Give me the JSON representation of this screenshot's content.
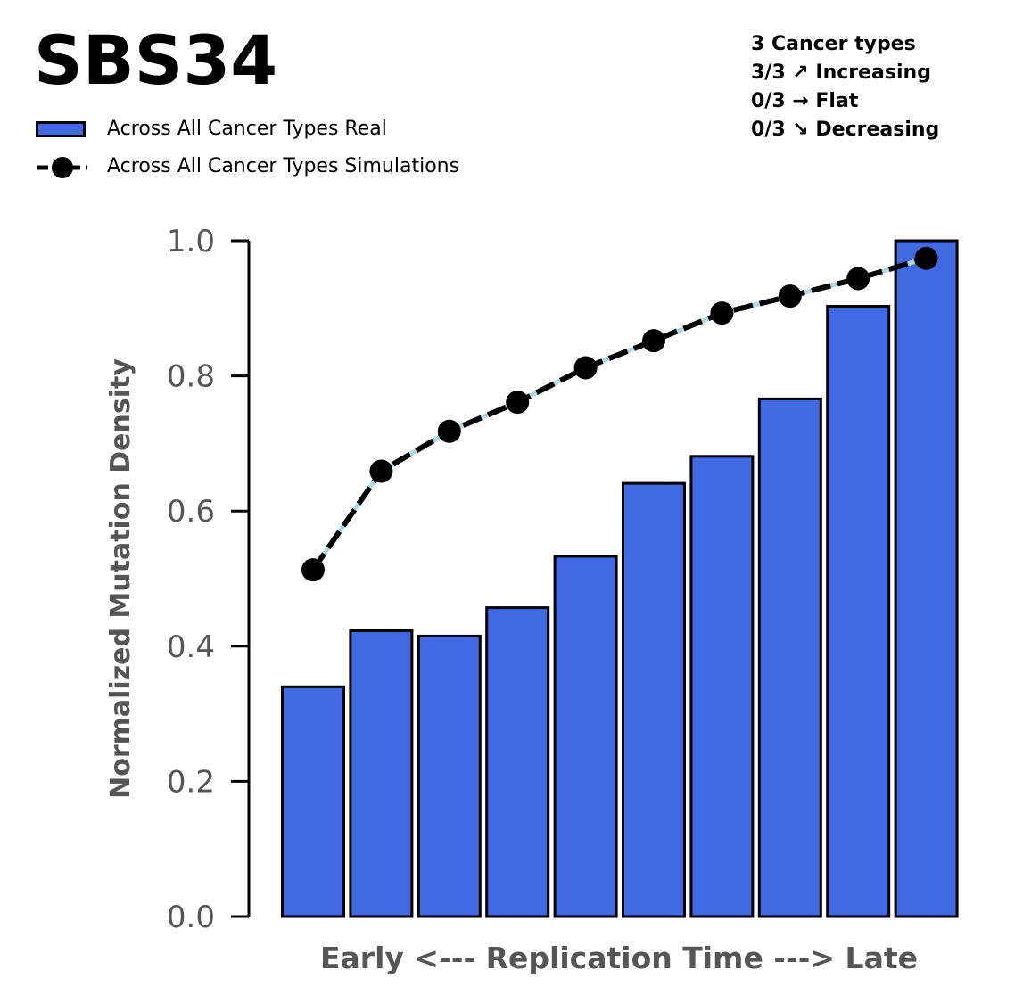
{
  "title": "SBS34",
  "summary": {
    "lines": [
      "3 Cancer types",
      "3/3 ↗ Increasing",
      "0/3 → Flat",
      "0/3 ↘ Decreasing"
    ]
  },
  "legend": {
    "real_label": "Across All Cancer Types Real",
    "sim_label": "Across All Cancer Types Simulations"
  },
  "colors": {
    "bar": "#4169E1",
    "bar_edge": "#000000",
    "sim_line": "#000000",
    "sim_dash_gap": "#ADD8E6",
    "axis_text": "#555555"
  },
  "chart_data": {
    "type": "bar",
    "xlabel": "Early <--- Replication Time ---> Late",
    "ylabel": "Normalized Mutation Density",
    "ylim": [
      0,
      1.0
    ],
    "yticks": [
      0.0,
      0.2,
      0.4,
      0.6,
      0.8,
      1.0
    ],
    "ytick_labels": [
      "0.0",
      "0.2",
      "0.4",
      "0.6",
      "0.8",
      "1.0"
    ],
    "grid": false,
    "legend_position": "top-left",
    "series": [
      {
        "name": "Across All Cancer Types Real",
        "type": "bar",
        "values": [
          0.34,
          0.423,
          0.415,
          0.457,
          0.533,
          0.641,
          0.681,
          0.766,
          0.903,
          1.0
        ]
      },
      {
        "name": "Across All Cancer Types Simulations",
        "type": "line",
        "values": [
          0.513,
          0.659,
          0.718,
          0.761,
          0.812,
          0.852,
          0.893,
          0.918,
          0.944,
          0.974
        ]
      }
    ]
  }
}
